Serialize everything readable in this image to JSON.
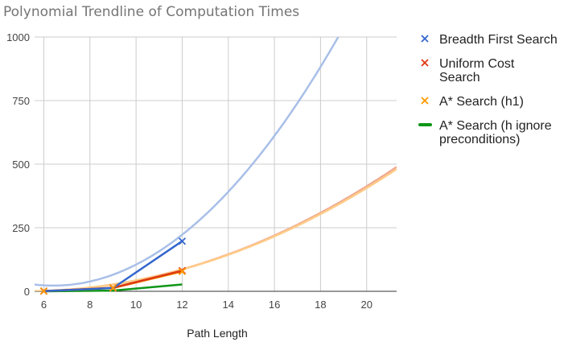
{
  "chart_data": {
    "type": "line",
    "title": "Polynomial Trendline of Computation Times",
    "xlabel": "Path Length",
    "ylabel": "",
    "xlim": [
      5.6,
      21.3
    ],
    "ylim": [
      0,
      1000
    ],
    "x_ticks": [
      6,
      8,
      10,
      12,
      14,
      16,
      18,
      20
    ],
    "y_ticks": [
      0,
      250,
      500,
      750,
      1000
    ],
    "grid": true,
    "legend_position": "right",
    "series": [
      {
        "name": "Breadth First Search",
        "color": "#3366cc",
        "marker": "x",
        "points": [
          [
            6,
            1
          ],
          [
            9,
            13
          ],
          [
            12,
            197
          ]
        ],
        "trendline": {
          "color": "#a8bfe8",
          "coeffs": [
            0,
            6.4,
            -82,
            285
          ]
        }
      },
      {
        "name": "Uniform Cost Search",
        "color": "#dc3912",
        "marker": "x",
        "points": [
          [
            6,
            1
          ],
          [
            9,
            14
          ],
          [
            12,
            81
          ]
        ],
        "trendline": {
          "color": "#f0a890",
          "coeffs": [
            0,
            1.9,
            -20,
            53
          ]
        }
      },
      {
        "name": "A* Search (h1)",
        "color": "#ff9900",
        "marker": "x",
        "points": [
          [
            6,
            1
          ],
          [
            9,
            13
          ],
          [
            12,
            78
          ]
        ],
        "trendline": {
          "color": "#ffcc88",
          "coeffs": [
            0,
            1.86,
            -19.5,
            52
          ]
        }
      },
      {
        "name": "A* Search (h ignore preconditions)",
        "color": "#109618",
        "marker": "line",
        "points": [
          [
            6,
            0
          ],
          [
            9,
            3
          ],
          [
            12,
            27
          ]
        ],
        "trendline": null
      }
    ]
  },
  "legend": {
    "items": [
      {
        "lines": [
          "Breadth First Search"
        ],
        "color": "#3366cc",
        "symbol": "x"
      },
      {
        "lines": [
          "Uniform Cost",
          "Search"
        ],
        "color": "#dc3912",
        "symbol": "x"
      },
      {
        "lines": [
          "A* Search (h1)"
        ],
        "color": "#ff9900",
        "symbol": "x"
      },
      {
        "lines": [
          "A* Search (h ignore",
          "preconditions)"
        ],
        "color": "#109618",
        "symbol": "line"
      }
    ]
  }
}
